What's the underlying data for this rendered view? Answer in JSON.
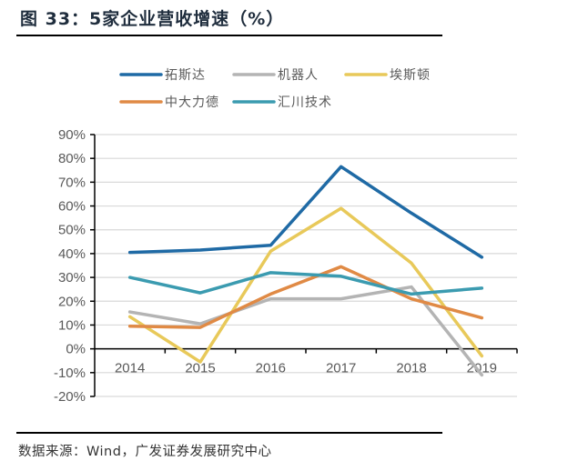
{
  "figure": {
    "title": "图 33：5家企业营收增速（%）",
    "source": "数据来源：Wind，广发证券发展研究中心"
  },
  "chart_data": {
    "type": "line",
    "title": "5家企业营收增速（%）",
    "xlabel": "",
    "ylabel": "",
    "categories": [
      "2014",
      "2015",
      "2016",
      "2017",
      "2018",
      "2019"
    ],
    "ylim": [
      -20,
      90
    ],
    "yticks": [
      90,
      80,
      70,
      60,
      50,
      40,
      30,
      20,
      10,
      0,
      -10,
      -20
    ],
    "ytick_labels": [
      "90%",
      "80%",
      "70%",
      "60%",
      "50%",
      "40%",
      "30%",
      "20%",
      "10%",
      "0%",
      "-10%",
      "-20%"
    ],
    "grid": true,
    "legend": "top",
    "series": [
      {
        "name": "拓斯达",
        "color": "#1f6aa5",
        "values": [
          40.5,
          41.5,
          43.5,
          76.5,
          57,
          38.5
        ]
      },
      {
        "name": "机器人",
        "color": "#b4b4b4",
        "values": [
          15.5,
          10.5,
          21,
          21,
          26,
          -11
        ]
      },
      {
        "name": "埃斯顿",
        "color": "#e8c95a",
        "values": [
          13.5,
          -5.5,
          41,
          59,
          36,
          -3
        ]
      },
      {
        "name": "中大力德",
        "color": "#e08a45",
        "values": [
          9.5,
          9,
          23,
          34.5,
          21,
          13
        ]
      },
      {
        "name": "汇川技术",
        "color": "#3b9bb0",
        "values": [
          30,
          23.5,
          32,
          30.5,
          23,
          25.5
        ]
      }
    ]
  }
}
